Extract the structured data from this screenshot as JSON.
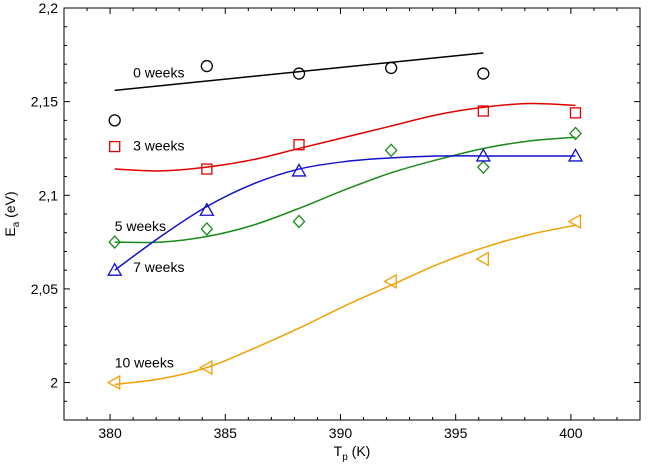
{
  "chart_data": {
    "type": "scatter",
    "title": "",
    "xlabel": {
      "main": "T",
      "sub": "p",
      "unit": " (K)"
    },
    "ylabel": {
      "main": "E",
      "sub": "a",
      "unit": " (eV)"
    },
    "xlim": [
      378,
      403
    ],
    "ylim": [
      1.98,
      2.2
    ],
    "xticks": [
      380,
      385,
      390,
      395,
      400
    ],
    "xtick_labels": [
      "380",
      "385",
      "390",
      "395",
      "400"
    ],
    "yticks": [
      2.0,
      2.05,
      2.1,
      2.15,
      2.2
    ],
    "ytick_labels": [
      "2",
      "2,05",
      "2,1",
      "2,15",
      "2,2"
    ],
    "grid": false,
    "series": [
      {
        "name": "0 weeks",
        "label": "0 weeks",
        "color": "#000000",
        "marker": "circle",
        "label_at": [
          381.0,
          2.163
        ],
        "points": [
          [
            380.2,
            2.14
          ],
          [
            384.2,
            2.169
          ],
          [
            388.2,
            2.165
          ],
          [
            392.2,
            2.168
          ],
          [
            396.2,
            2.165
          ]
        ],
        "fit": [
          [
            380.2,
            2.156
          ],
          [
            396.2,
            2.176
          ]
        ]
      },
      {
        "name": "3 weeks",
        "label": "3 weeks",
        "color": "#e00000",
        "marker": "square",
        "label_at": [
          381.0,
          2.124
        ],
        "points": [
          [
            380.2,
            2.126
          ],
          [
            384.2,
            2.114
          ],
          [
            388.2,
            2.127
          ],
          [
            396.2,
            2.145
          ],
          [
            400.2,
            2.144
          ]
        ],
        "fit": [
          [
            380.2,
            2.114
          ],
          [
            382.2,
            2.113
          ],
          [
            384.2,
            2.115
          ],
          [
            386.2,
            2.119
          ],
          [
            388.2,
            2.125
          ],
          [
            390.2,
            2.131
          ],
          [
            392.2,
            2.137
          ],
          [
            394.2,
            2.143
          ],
          [
            396.2,
            2.147
          ],
          [
            398.2,
            2.149
          ],
          [
            400.2,
            2.148
          ]
        ]
      },
      {
        "name": "5 weeks",
        "label": "5 weeks",
        "color": "#1a8a1a",
        "marker": "diamond",
        "label_at": [
          380.2,
          2.081
        ],
        "points": [
          [
            380.2,
            2.075
          ],
          [
            384.2,
            2.082
          ],
          [
            388.2,
            2.086
          ],
          [
            392.2,
            2.124
          ],
          [
            396.2,
            2.115
          ],
          [
            400.2,
            2.133
          ]
        ],
        "fit": [
          [
            380.2,
            2.075
          ],
          [
            382.2,
            2.075
          ],
          [
            384.2,
            2.078
          ],
          [
            386.2,
            2.084
          ],
          [
            388.2,
            2.093
          ],
          [
            390.2,
            2.103
          ],
          [
            392.2,
            2.112
          ],
          [
            394.2,
            2.119
          ],
          [
            396.2,
            2.125
          ],
          [
            398.2,
            2.129
          ],
          [
            400.2,
            2.131
          ]
        ]
      },
      {
        "name": "7 weeks",
        "label": "7 weeks",
        "color": "#1010cc",
        "marker": "triangle-up",
        "label_at": [
          381.0,
          2.059
        ],
        "points": [
          [
            380.2,
            2.06
          ],
          [
            384.2,
            2.092
          ],
          [
            388.2,
            2.113
          ],
          [
            396.2,
            2.121
          ],
          [
            400.2,
            2.121
          ]
        ],
        "fit": [
          [
            380.2,
            2.06
          ],
          [
            382.2,
            2.078
          ],
          [
            384.2,
            2.094
          ],
          [
            386.2,
            2.106
          ],
          [
            388.2,
            2.114
          ],
          [
            390.2,
            2.118
          ],
          [
            392.2,
            2.12
          ],
          [
            394.2,
            2.121
          ],
          [
            396.2,
            2.121
          ],
          [
            398.2,
            2.121
          ],
          [
            400.2,
            2.121
          ]
        ]
      },
      {
        "name": "10 weeks",
        "label": "10 weeks",
        "color": "#f0a000",
        "marker": "triangle-left",
        "label_at": [
          380.2,
          2.008
        ],
        "points": [
          [
            380.2,
            2.0
          ],
          [
            384.2,
            2.008
          ],
          [
            392.2,
            2.054
          ],
          [
            396.2,
            2.066
          ],
          [
            400.2,
            2.086
          ]
        ],
        "fit": [
          [
            380.2,
            1.999
          ],
          [
            382.2,
            2.002
          ],
          [
            384.2,
            2.008
          ],
          [
            386.2,
            2.018
          ],
          [
            388.2,
            2.029
          ],
          [
            390.2,
            2.041
          ],
          [
            392.2,
            2.052
          ],
          [
            394.2,
            2.063
          ],
          [
            396.2,
            2.072
          ],
          [
            398.2,
            2.079
          ],
          [
            400.2,
            2.084
          ]
        ]
      }
    ]
  }
}
